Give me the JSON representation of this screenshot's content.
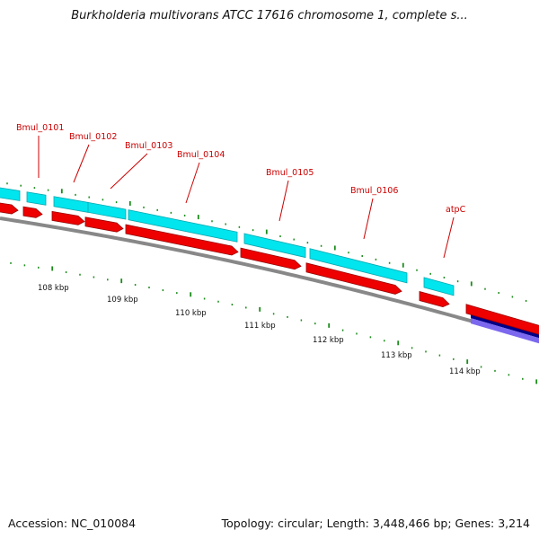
{
  "title": "Burkholderia multivorans ATCC 17616 chromosome 1, complete s...",
  "footer": {
    "accession": "Accession: NC_010084",
    "summary": "Topology: circular; Length: 3,448,466 bp; Genes: 3,214"
  },
  "colors": {
    "cds_forward": "#00e5ee",
    "cds_reverse": "#ee0000",
    "backbone": "#888888",
    "tick": "#1a8c1a",
    "label": "#cc0000",
    "feature_dark": "#000088",
    "feature_light": "#7b68ee"
  },
  "genes": [
    {
      "name": "Bmul_0101"
    },
    {
      "name": "Bmul_0102"
    },
    {
      "name": "Bmul_0103"
    },
    {
      "name": "Bmul_0104"
    },
    {
      "name": "Bmul_0105"
    },
    {
      "name": "Bmul_0106"
    },
    {
      "name": "atpC"
    }
  ],
  "scale_labels": [
    "108 kbp",
    "109 kbp",
    "110 kbp",
    "111 kbp",
    "112 kbp",
    "113 kbp",
    "114 kbp"
  ]
}
